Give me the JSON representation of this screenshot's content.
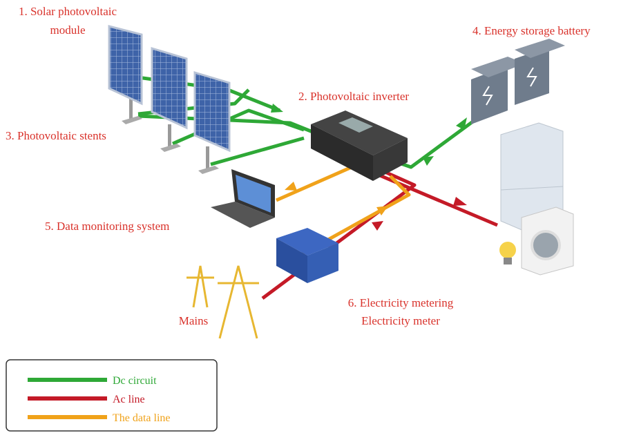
{
  "labels": [
    {
      "lines": [
        "1. Solar photovoltaic",
        "module"
      ]
    },
    {
      "lines": [
        "2. Photovoltaic inverter"
      ]
    },
    {
      "lines": [
        "3. Photovoltaic stents"
      ]
    },
    {
      "lines": [
        "4. Energy storage battery"
      ]
    },
    {
      "lines": [
        "5. Data monitoring system"
      ]
    },
    {
      "lines": [
        "6. Electricity metering",
        "Electricity meter"
      ]
    },
    {
      "lines": [
        "Mains"
      ]
    }
  ],
  "label_color": "#d9322b",
  "legend": [
    {
      "label": "Dc circuit",
      "color": "#2ea836"
    },
    {
      "label": "Ac line",
      "color": "#c41a27"
    },
    {
      "label": "The data line",
      "color": "#f0a21a"
    }
  ]
}
